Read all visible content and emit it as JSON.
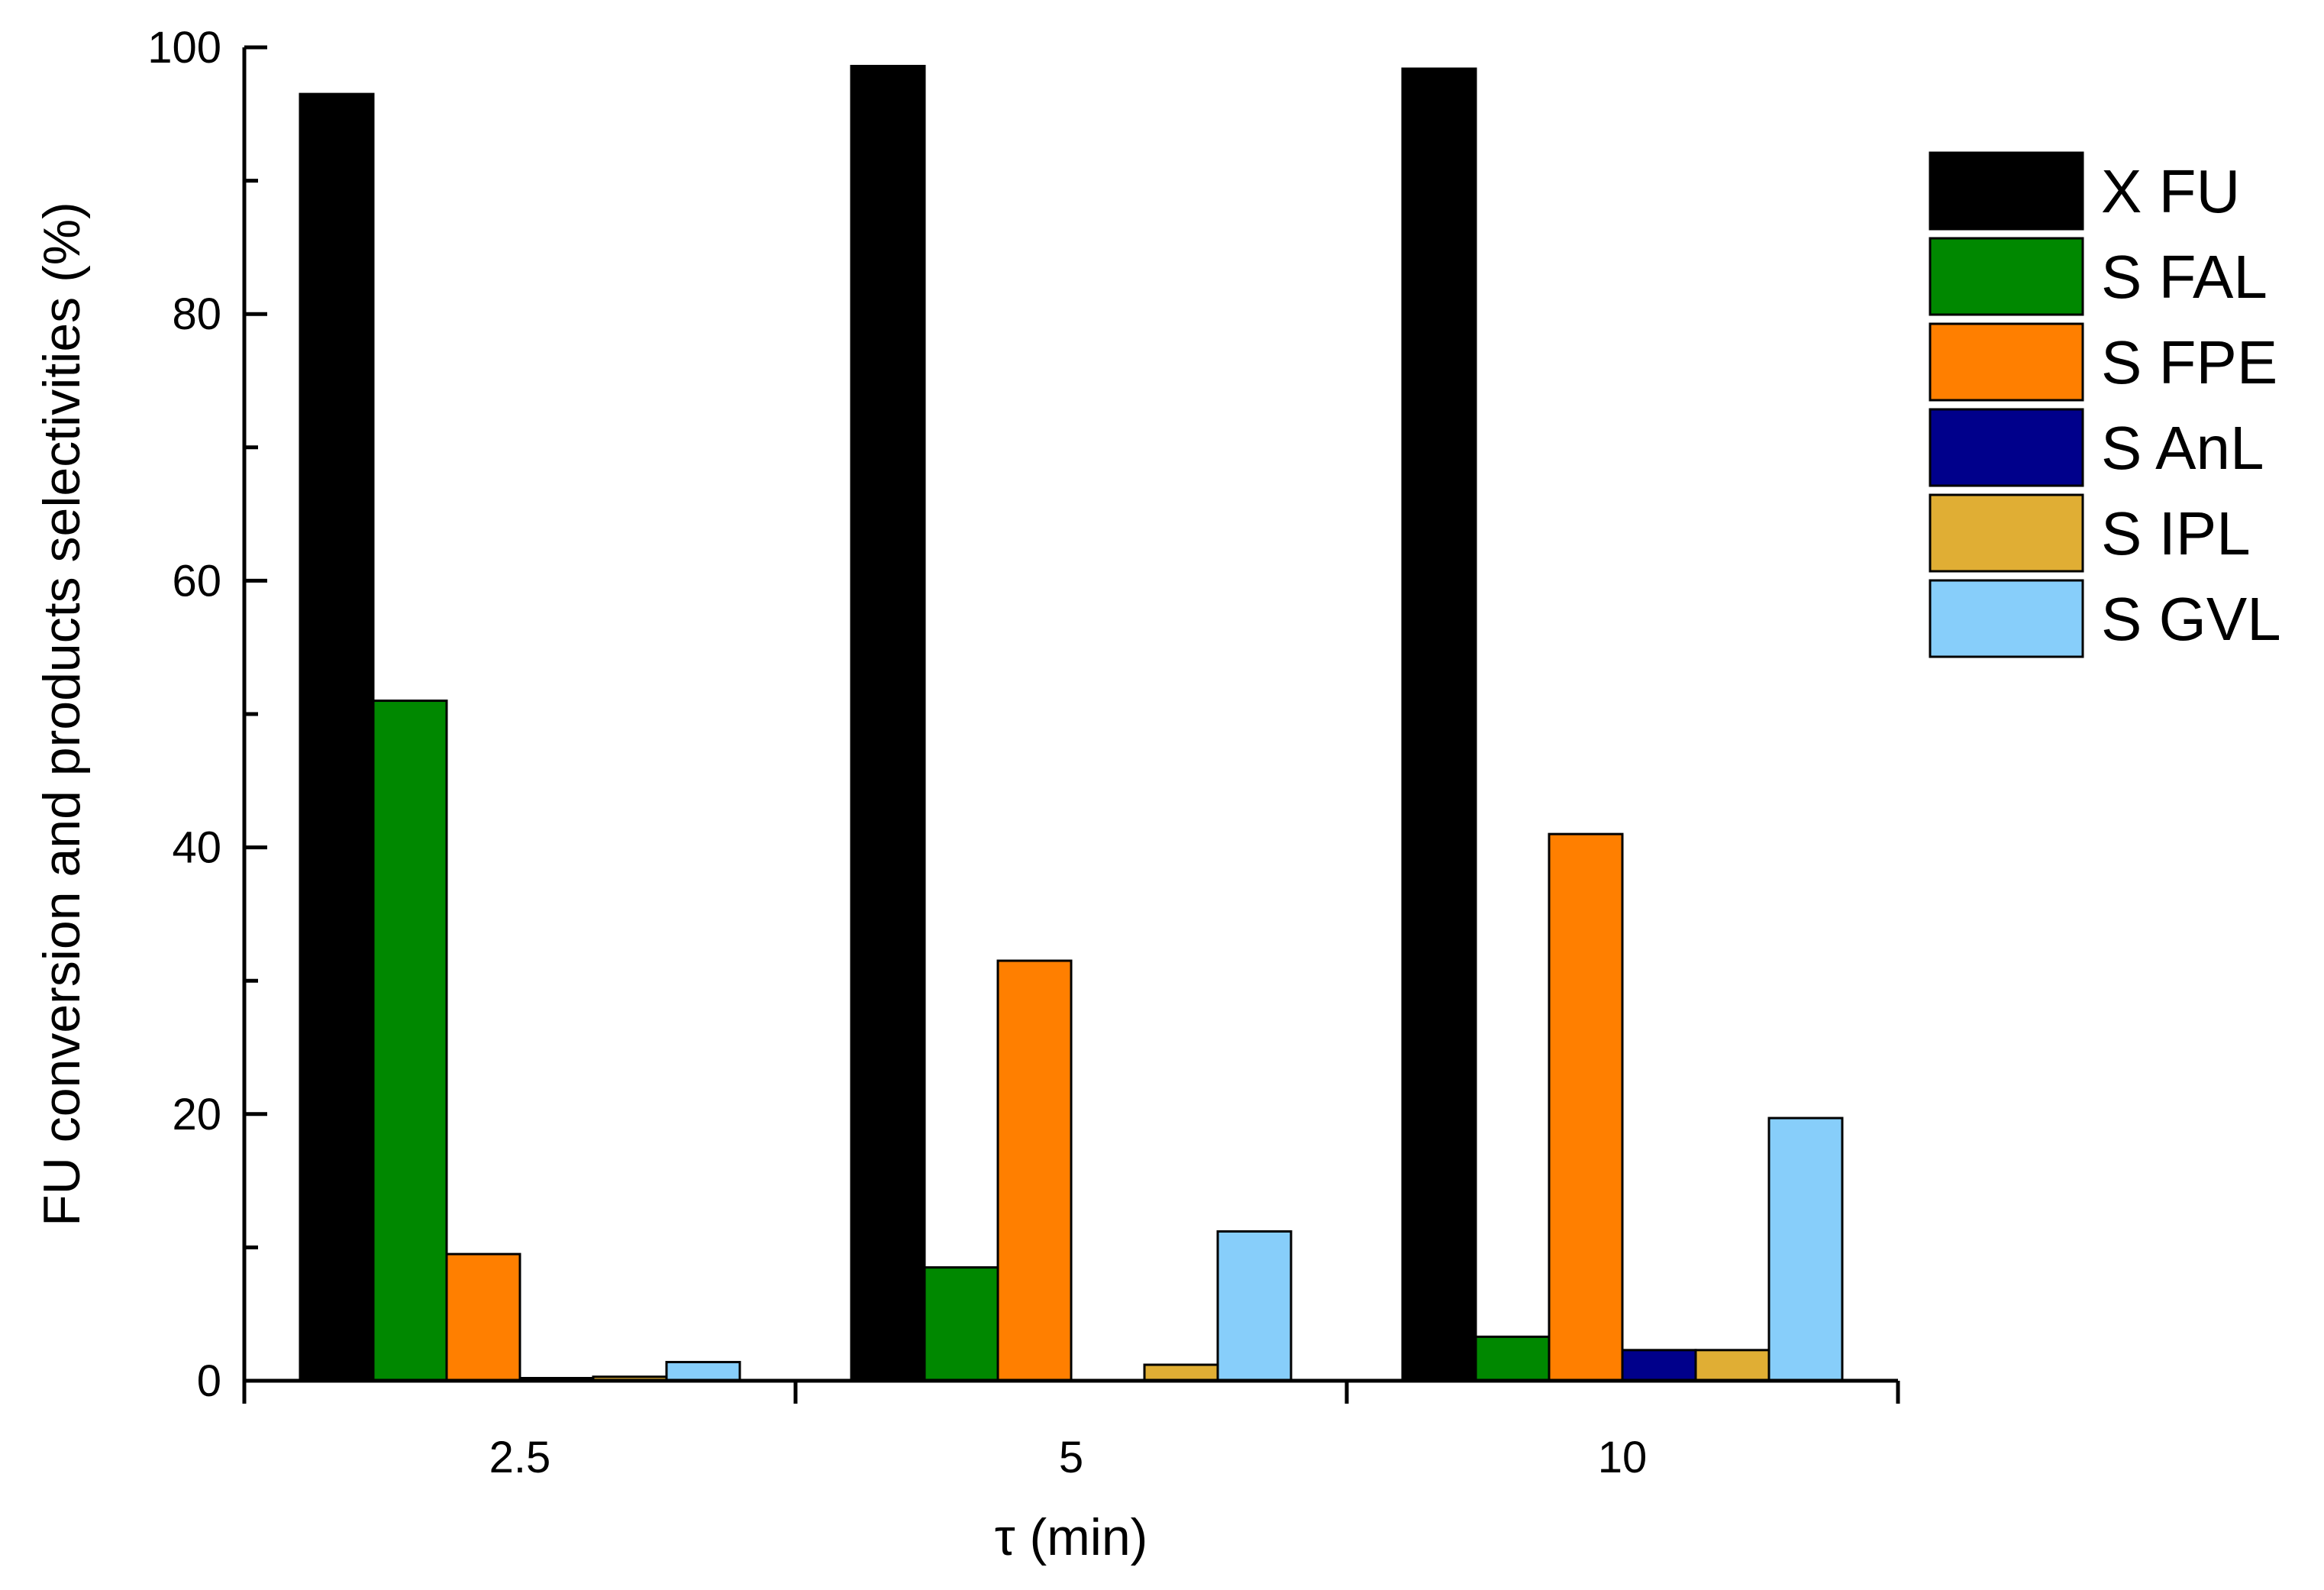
{
  "chart_data": {
    "type": "bar",
    "xlabel": "τ (min)",
    "ylabel": "FU conversion and products selectivities (%)",
    "ylim": [
      0,
      100
    ],
    "yticks": [
      0,
      20,
      40,
      60,
      80,
      100
    ],
    "yticks_minor_step": 10,
    "grid": false,
    "legend_position": "right",
    "categories": [
      "2.5",
      "5",
      "10"
    ],
    "series": [
      {
        "name": "X FU",
        "color": "#000000",
        "values": [
          96.5,
          98.6,
          98.4
        ]
      },
      {
        "name": "S FAL",
        "color": "#008800",
        "values": [
          51.0,
          8.5,
          3.3
        ]
      },
      {
        "name": "S FPE",
        "color": "#ff7f00",
        "values": [
          9.5,
          31.5,
          41.0
        ]
      },
      {
        "name": "S AnL",
        "color": "#00008b",
        "values": [
          0.2,
          0.0,
          2.3
        ]
      },
      {
        "name": "S IPL",
        "color": "#e0ae34",
        "values": [
          0.3,
          1.2,
          2.3
        ]
      },
      {
        "name": "S GVL",
        "color": "#87cefa",
        "values": [
          1.4,
          11.2,
          19.7
        ]
      }
    ]
  }
}
